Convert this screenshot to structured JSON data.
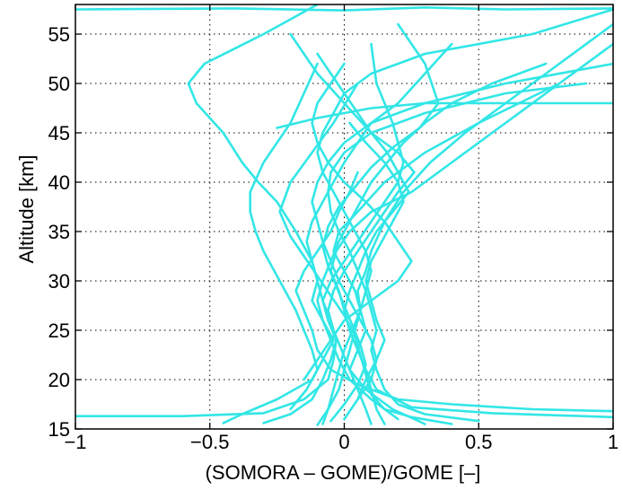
{
  "chart_data": {
    "type": "line",
    "title": "",
    "xlabel": "(SOMORA – GOME)/GOME [–]",
    "ylabel": "Altitude [km]",
    "xlim": [
      -1,
      1
    ],
    "ylim": [
      15,
      58
    ],
    "x_ticks": [
      -1,
      -0.5,
      0,
      0.5,
      1
    ],
    "x_tick_labels": [
      "−1",
      "−0.5",
      "0",
      "0.5",
      "1"
    ],
    "y_ticks": [
      15,
      20,
      25,
      30,
      35,
      40,
      45,
      50,
      55
    ],
    "y_tick_labels": [
      "15",
      "20",
      "25",
      "30",
      "35",
      "40",
      "45",
      "50",
      "55"
    ],
    "grid": true,
    "grid_style": "dotted",
    "line_color": "#33e6e6",
    "series": [
      {
        "x": [
          -0.45,
          -0.38,
          -0.25,
          -0.12,
          -0.08,
          -0.04,
          -0.08,
          -0.12,
          -0.1,
          -0.12,
          -0.18,
          -0.25,
          -0.32,
          -0.38,
          -0.45,
          -0.55,
          -0.58,
          -0.52,
          -0.3,
          -0.1
        ],
        "y": [
          15.6,
          16.5,
          18,
          20,
          22,
          24,
          26,
          28,
          30,
          32,
          35,
          38,
          40,
          42,
          45,
          48,
          50,
          52,
          55,
          58
        ]
      },
      {
        "x": [
          0.3,
          0.18,
          0.08,
          0.02,
          0.05,
          0.08,
          0.06,
          0.05,
          0.08,
          0.1,
          0.15,
          0.22,
          0.32,
          0.45,
          0.6,
          0.8,
          1.0
        ],
        "y": [
          15.5,
          17,
          19,
          21,
          23,
          25,
          27,
          29,
          31,
          33,
          36,
          39,
          42,
          45,
          48,
          52,
          56
        ]
      },
      {
        "x": [
          1.0,
          0.55,
          0.25,
          0.12,
          0.08,
          0.05,
          0.02,
          0.0,
          -0.02,
          -0.05,
          -0.03,
          0.02,
          0.1,
          0.25,
          0.4,
          0.6,
          0.8
        ],
        "y": [
          16.2,
          16.6,
          17.2,
          19,
          21,
          23,
          25,
          27,
          29,
          31,
          33,
          35,
          37,
          39,
          42,
          46,
          50
        ]
      },
      {
        "x": [
          -1.0,
          -0.6,
          -0.3,
          -0.15,
          -0.06,
          -0.04,
          -0.03,
          -0.06,
          -0.08,
          -0.05,
          0.0,
          0.05,
          0.1,
          0.15,
          0.2,
          0.22,
          0.18,
          0.12,
          0.1
        ],
        "y": [
          16.3,
          16.3,
          16.6,
          18,
          20,
          22,
          24,
          26,
          28,
          30,
          32,
          34,
          36,
          38,
          40,
          42,
          46,
          50,
          54
        ]
      },
      {
        "x": [
          -0.2,
          -0.14,
          -0.1,
          -0.12,
          -0.15,
          -0.18,
          -0.22,
          -0.26,
          -0.3,
          -0.33,
          -0.35,
          -0.35,
          -0.3,
          -0.25,
          -0.2,
          -0.15,
          -0.1
        ],
        "y": [
          17,
          19,
          21,
          23,
          25,
          27,
          29,
          31,
          33,
          35,
          37,
          39,
          42,
          44,
          46,
          49,
          52
        ]
      },
      {
        "x": [
          0.5,
          0.3,
          0.2,
          0.15,
          0.12,
          0.1,
          0.12,
          0.1,
          0.08,
          0.05,
          0.02,
          -0.02,
          -0.05,
          -0.06,
          -0.05,
          0.0,
          0.1,
          0.3,
          0.6,
          0.9
        ],
        "y": [
          15.8,
          16.5,
          17.5,
          19,
          21,
          23,
          25,
          27,
          29,
          31,
          33,
          35,
          37,
          39,
          41,
          43,
          45,
          47,
          49,
          50
        ]
      },
      {
        "x": [
          0.0,
          0.05,
          0.1,
          0.12,
          0.15,
          0.12,
          0.1,
          0.08,
          0.1,
          0.14,
          0.18,
          0.22,
          0.2,
          0.15,
          0.08,
          0.02
        ],
        "y": [
          16,
          18,
          20,
          22,
          24,
          26,
          28,
          30,
          32,
          34,
          36,
          38,
          40,
          42,
          44,
          46
        ]
      },
      {
        "x": [
          -0.1,
          -0.06,
          -0.02,
          0.0,
          0.02,
          0.04,
          0.06,
          0.04,
          0.0,
          -0.04,
          -0.02,
          0.05,
          0.15,
          0.3,
          0.5,
          0.8,
          1.0
        ],
        "y": [
          15.4,
          17,
          19,
          21,
          23,
          25,
          27,
          29,
          31,
          33,
          35,
          37,
          40,
          43,
          46,
          50,
          54
        ]
      },
      {
        "x": [
          1.0,
          0.7,
          0.4,
          0.2,
          0.05,
          -0.05,
          -0.1,
          -0.12,
          -0.15,
          -0.18,
          -0.15,
          -0.1,
          -0.05,
          -0.02,
          0.02,
          0.05
        ],
        "y": [
          16.8,
          17,
          17.5,
          18,
          19.5,
          21,
          23,
          25,
          27,
          29,
          31,
          33,
          35,
          37,
          39,
          41
        ]
      },
      {
        "x": [
          0.05,
          0.08,
          0.12,
          0.1,
          0.06,
          0.02,
          -0.02,
          -0.05,
          -0.08,
          -0.1,
          -0.12,
          -0.1,
          -0.06,
          0.0,
          0.1,
          0.3,
          0.6,
          1.0
        ],
        "y": [
          18,
          20,
          22,
          24,
          26,
          28,
          30,
          32,
          34,
          36,
          38,
          40,
          42,
          44,
          46,
          48,
          50,
          52
        ]
      },
      {
        "x": [
          -0.3,
          -0.2,
          -0.12,
          -0.08,
          -0.05,
          -0.03,
          -0.05,
          -0.08,
          -0.1,
          -0.12,
          -0.14,
          -0.12,
          -0.08,
          -0.04,
          0.0,
          0.05,
          0.1,
          0.2,
          0.3,
          0.4
        ],
        "y": [
          15.6,
          16.5,
          18,
          20,
          22,
          24,
          26,
          28,
          30,
          32,
          34,
          36,
          38,
          40,
          42,
          44,
          46,
          48,
          51,
          54
        ]
      },
      {
        "x": [
          0.15,
          0.12,
          0.1,
          0.08,
          0.05,
          0.02,
          0.0,
          0.02,
          0.05,
          0.08,
          0.12,
          0.18,
          0.24,
          0.2,
          0.16,
          0.1,
          0.05,
          0.0,
          -0.05,
          -0.1
        ],
        "y": [
          15.5,
          17,
          19,
          21,
          23,
          25,
          27,
          29,
          31,
          33,
          35,
          37,
          39,
          41,
          43,
          45,
          47,
          49,
          51,
          53
        ]
      },
      {
        "x": [
          -0.08,
          -0.06,
          -0.04,
          -0.02,
          0.0,
          0.03,
          0.06,
          0.08,
          0.1,
          0.08,
          0.04,
          0.0,
          -0.04,
          -0.08,
          -0.1,
          -0.08,
          -0.04,
          0.0,
          0.1,
          0.3,
          0.7,
          1.0
        ],
        "y": [
          15.5,
          17,
          19,
          21,
          23,
          25,
          27,
          29,
          31,
          33,
          35,
          37,
          39,
          41,
          43,
          45,
          47,
          49,
          51,
          53,
          55,
          57.5
        ]
      },
      {
        "x": [
          -1.0,
          -0.4,
          0.0,
          0.3,
          0.6,
          1.0
        ],
        "y": [
          57.5,
          57.6,
          57.4,
          57.7,
          57.5,
          57.6
        ]
      },
      {
        "x": [
          -0.25,
          -0.1,
          0.0,
          0.1,
          0.3,
          0.5,
          0.8,
          1.0
        ],
        "y": [
          45.5,
          46.5,
          47,
          47.5,
          48,
          48,
          48,
          48
        ]
      },
      {
        "x": [
          -0.15,
          -0.1,
          -0.05,
          0.0,
          0.1,
          0.2,
          0.25,
          0.2,
          0.15,
          0.08,
          0.0,
          -0.06,
          -0.1,
          -0.12,
          -0.1,
          -0.05,
          0.0
        ],
        "y": [
          20,
          22,
          24,
          26,
          28,
          30,
          32,
          34,
          36,
          38,
          40,
          42,
          44,
          46,
          48,
          50,
          52
        ]
      },
      {
        "x": [
          0.2,
          0.1,
          0.02,
          -0.02,
          -0.05,
          -0.08,
          -0.1,
          -0.08,
          -0.05,
          -0.02,
          0.02,
          0.06,
          0.1,
          0.16,
          0.22,
          0.3,
          0.4,
          0.55,
          0.75
        ],
        "y": [
          16,
          18,
          20,
          22,
          24,
          26,
          28,
          30,
          32,
          34,
          36,
          38,
          40,
          42,
          44,
          46,
          48,
          50,
          52
        ]
      },
      {
        "x": [
          -0.05,
          0.0,
          0.05,
          0.08,
          0.06,
          0.03,
          0.0,
          -0.03,
          -0.06,
          -0.08,
          -0.06,
          -0.02,
          0.04,
          0.1,
          0.18,
          0.28,
          0.35,
          0.3,
          0.2
        ],
        "y": [
          15.8,
          17.5,
          19.5,
          21.5,
          23.5,
          25.5,
          27.5,
          29.5,
          31.5,
          33.5,
          35.5,
          37.5,
          39.5,
          41.5,
          43.5,
          45.5,
          48,
          52,
          56
        ]
      },
      {
        "x": [
          0.4,
          0.25,
          0.15,
          0.1,
          0.08,
          0.06,
          0.04,
          0.0,
          -0.05,
          -0.1,
          -0.15,
          -0.2,
          -0.24,
          -0.2,
          -0.12,
          -0.04,
          0.05
        ],
        "y": [
          15.5,
          16.2,
          17,
          18.5,
          20.5,
          22.5,
          24.5,
          26.5,
          28.5,
          30.5,
          32.5,
          34.5,
          37,
          40,
          43,
          46,
          50
        ]
      },
      {
        "x": [
          0.1,
          0.08,
          0.05,
          0.02,
          -0.01,
          -0.04,
          -0.06,
          -0.04,
          0.0,
          0.05,
          0.1,
          0.15,
          0.2,
          0.26,
          0.2,
          0.1,
          0.0,
          -0.1,
          -0.2
        ],
        "y": [
          15.5,
          17,
          19,
          21,
          23,
          25,
          27,
          29,
          31,
          33,
          35,
          37,
          39,
          41,
          43,
          45,
          48,
          51,
          55
        ]
      }
    ]
  }
}
